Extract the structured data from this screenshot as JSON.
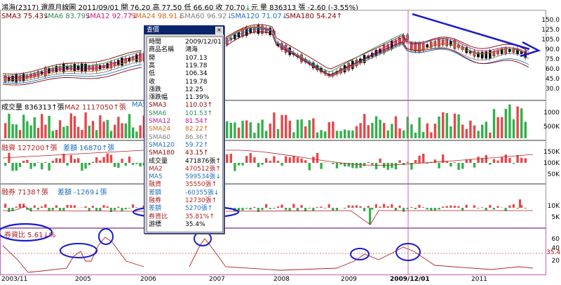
{
  "header": {
    "line1_prefix": "鴻海(2317)  還原月線圖",
    "date": "2011/09/01",
    "open_label": "開",
    "open": "76.20",
    "high_label": "高",
    "high": "77.50",
    "low_label": "低",
    "low": "66.60",
    "close_label": "收",
    "close": "70.70",
    "down_arrow": "↓",
    "unit": "元",
    "volume_label": "量",
    "volume": "836313",
    "volume_unit": "張",
    "change": "-2.60",
    "change_pct": "(-3.55%)"
  },
  "sma_bar": [
    {
      "text": "SMA3 75.43↓",
      "color": "#8b0000"
    },
    {
      "text": "SMA6 83.79↓",
      "color": "#2e8b57"
    },
    {
      "text": "SMA12 92.77↓",
      "color": "#c71585"
    },
    {
      "text": "SMA24 98.91↓",
      "color": "#d2691e"
    },
    {
      "text": "SMA60 96.92↓",
      "color": "#808080"
    },
    {
      "text": "SMA120 71.07↓",
      "color": "#1e6fbf"
    },
    {
      "text": "SMA180 54.24↑",
      "color": "#8b0000"
    }
  ],
  "price_axis": [
    "150.0",
    "125.0",
    "105.0",
    "90.0",
    "75.0",
    "60.0",
    "45.0",
    "30.0"
  ],
  "volume_pane": {
    "label": "成交量 836313↑張",
    "ma2": "MA2 1117050↑張",
    "ma5": "MA5",
    "axis": [
      "1000",
      "500K"
    ]
  },
  "margin_pane": {
    "label": "融資 127200↑張",
    "diff": "差額 16870↑張",
    "axis": [
      "150K",
      "100K",
      "50K"
    ]
  },
  "short_pane": {
    "label": "融券 7138↑張",
    "diff": "差額 -1269↓張",
    "axis": [
      "10K",
      "5K"
    ]
  },
  "ratio_pane": {
    "label": "券資比 5.61↓%",
    "axis": [
      "60",
      "40",
      "20"
    ],
    "marker_value": "35.4"
  },
  "x_axis": [
    "2003/11",
    "2005",
    "2006",
    "2007",
    "2008",
    "2009",
    "2009/12/01",
    "2011"
  ],
  "popup": {
    "title": "查價",
    "close_glyph": "×",
    "rows": [
      {
        "k": "時間",
        "v": "2009/12/01",
        "c": "#000"
      },
      {
        "k": "商品名稱",
        "v": "鴻海",
        "c": "#000"
      },
      {
        "k": "開",
        "v": "107.13",
        "c": "#000"
      },
      {
        "k": "高",
        "v": "119.78",
        "c": "#000"
      },
      {
        "k": "低",
        "v": "106.34",
        "c": "#000"
      },
      {
        "k": "收",
        "v": "119.78",
        "c": "#000"
      },
      {
        "k": "漲跌",
        "v": "12.25",
        "c": "#000"
      },
      {
        "k": "漲跌幅",
        "v": "11.39%",
        "c": "#000"
      },
      {
        "k": "SMA3",
        "v": "110.03↑",
        "c": "#8b0000"
      },
      {
        "k": "SMA6",
        "v": "101.53↑",
        "c": "#2e8b57"
      },
      {
        "k": "SMA12",
        "v": "81.54↑",
        "c": "#c71585"
      },
      {
        "k": "SMA24",
        "v": "82.22↑",
        "c": "#d2691e"
      },
      {
        "k": "SMA60",
        "v": "86.36↑",
        "c": "#808080"
      },
      {
        "k": "SMA120",
        "v": "59.72↑",
        "c": "#1e6fbf"
      },
      {
        "k": "SMA180",
        "v": "43.15↑",
        "c": "#8b0000"
      },
      {
        "k": "成交量",
        "v": "471876張↑",
        "c": "#000"
      },
      {
        "k": "MA2",
        "v": "470512張↑",
        "c": "#b22222"
      },
      {
        "k": "MA5",
        "v": "599534張↓",
        "c": "#1e6fbf"
      },
      {
        "k": "融資",
        "v": "35550張↑",
        "c": "#b22222"
      },
      {
        "k": "差額",
        "v": "-60355張↓",
        "c": "#1e6fbf"
      },
      {
        "k": "融券",
        "v": "12730張↑",
        "c": "#b22222"
      },
      {
        "k": "差額",
        "v": "5270張↑",
        "c": "#1e6fbf"
      },
      {
        "k": "券資比",
        "v": "35.81%↑",
        "c": "#b22222"
      },
      {
        "k": "游標",
        "v": "35.4%",
        "c": "#000"
      }
    ]
  },
  "colors": {
    "up": "#e8474a",
    "down": "#2e8b3e",
    "annotation": "#1a1ad0",
    "cursor": "#d060a0"
  }
}
